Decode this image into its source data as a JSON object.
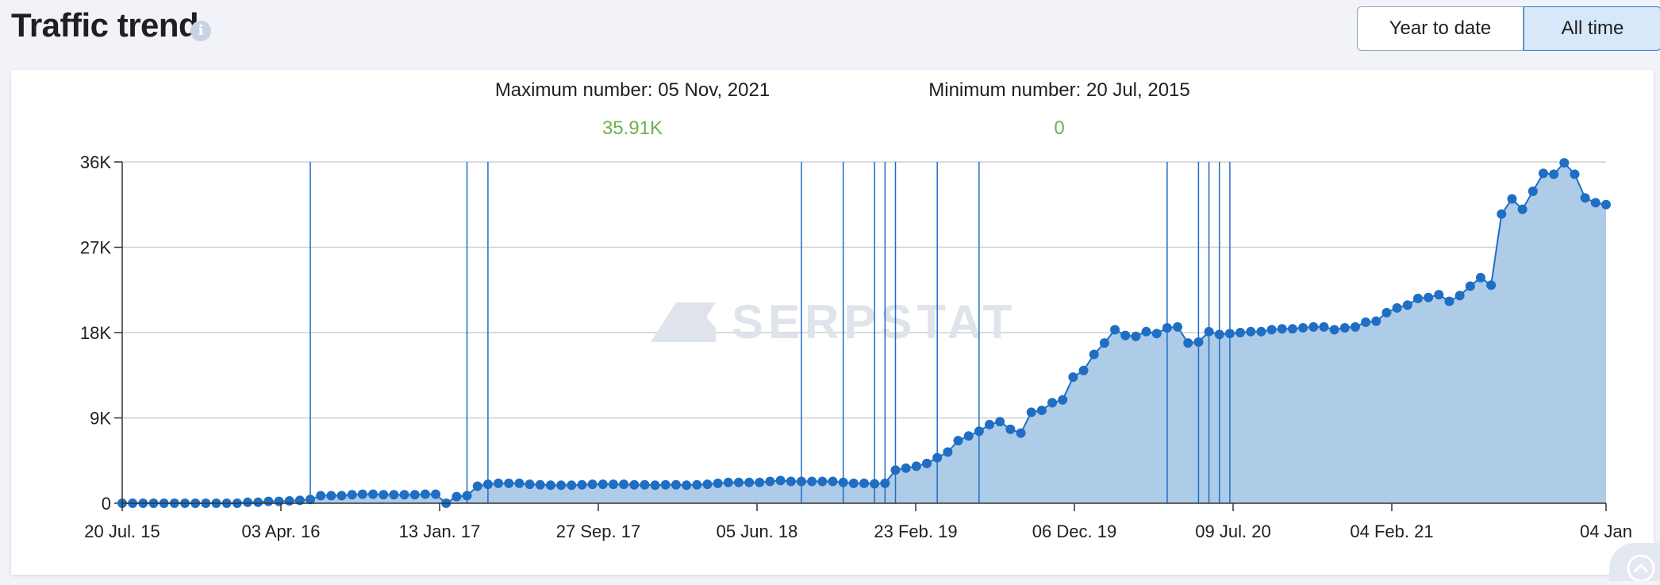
{
  "header": {
    "title": "Traffic trend",
    "info_icon": "info-icon"
  },
  "period_toggle": {
    "options": [
      "Year to date",
      "All time"
    ],
    "selected": "All time"
  },
  "stats": {
    "max_label": "Maximum number: 05 Nov, 2021",
    "max_value": "35.91K",
    "min_label": "Minimum number: 20 Jul, 2015",
    "min_value": "0"
  },
  "watermark": "SERPSTAT",
  "colors": {
    "line": "#1f6ec4",
    "area": "#aecbe8",
    "stat_value": "#6cb24a",
    "selected_button": "#d6e8fa"
  },
  "chart_data": {
    "type": "area",
    "x_start": "20 Jul. 15",
    "x_end": "04 Jan",
    "x_tick_labels": [
      "20 Jul. 15",
      "03 Apr. 16",
      "13 Jan. 17",
      "27 Sep. 17",
      "05 Jun. 18",
      "23 Feb. 19",
      "06 Dec. 19",
      "09 Jul. 20",
      "04 Feb. 21",
      "04 Jan"
    ],
    "y_tick_labels": [
      "0",
      "9K",
      "18K",
      "27K",
      "36K"
    ],
    "ylim": [
      0,
      36000
    ],
    "grid": true,
    "marker_points_x": [
      18,
      33,
      35,
      65,
      69,
      72,
      73,
      74,
      78,
      82,
      100,
      103,
      104,
      105,
      106
    ],
    "values": [
      0,
      0,
      0,
      0,
      0,
      0,
      0,
      0,
      0,
      0,
      0,
      0,
      100,
      100,
      200,
      200,
      250,
      300,
      400,
      800,
      800,
      800,
      900,
      950,
      950,
      900,
      900,
      900,
      900,
      950,
      950,
      0,
      700,
      800,
      1800,
      2000,
      2100,
      2100,
      2100,
      2000,
      1950,
      1900,
      1900,
      1900,
      1950,
      2000,
      2000,
      2000,
      2000,
      1950,
      1950,
      1900,
      1950,
      1950,
      1900,
      1950,
      2000,
      2100,
      2200,
      2200,
      2200,
      2200,
      2300,
      2400,
      2300,
      2300,
      2300,
      2300,
      2300,
      2200,
      2100,
      2100,
      2050,
      2100,
      3500,
      3700,
      3900,
      4200,
      4800,
      5400,
      6600,
      7100,
      7600,
      8300,
      8600,
      7800,
      7400,
      9600,
      9800,
      10600,
      10900,
      13300,
      14000,
      15700,
      16900,
      18300,
      17700,
      17600,
      18100,
      17900,
      18500,
      18600,
      16900,
      17000,
      18100,
      17800,
      17900,
      18000,
      18100,
      18100,
      18300,
      18400,
      18400,
      18500,
      18600,
      18600,
      18300,
      18500,
      18600,
      19100,
      19200,
      20100,
      20600,
      20900,
      21600,
      21700,
      22000,
      21300,
      21900,
      22900,
      23800,
      23000,
      30500,
      32100,
      31000,
      32900,
      34800,
      34700,
      35910,
      34700,
      32200,
      31700,
      31500
    ]
  }
}
